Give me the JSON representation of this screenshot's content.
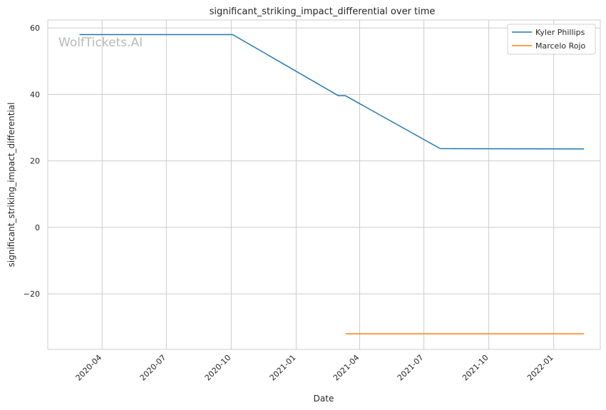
{
  "chart_data": {
    "type": "line",
    "title": "significant_striking_impact_differential over time",
    "xlabel": "Date",
    "ylabel": "significant_striking_impact_differential",
    "watermark": "WolfTickets.AI",
    "x_ticks": [
      "2020-04",
      "2020-07",
      "2020-10",
      "2021-01",
      "2021-04",
      "2021-07",
      "2021-10",
      "2022-01"
    ],
    "y_ticks": [
      "60",
      "40",
      "20",
      "0",
      "−20"
    ],
    "y_tick_values": [
      60,
      40,
      20,
      0,
      -20
    ],
    "ylim": [
      -36.7,
      62.4
    ],
    "xlim": [
      "2020-01-15",
      "2022-03-08"
    ],
    "grid": true,
    "legend_position": "top-right",
    "series": [
      {
        "name": "Kyler Phillips",
        "color": "#1f77b4",
        "points": [
          [
            "2020-02-29",
            58.0
          ],
          [
            "2020-10-03",
            58.0
          ],
          [
            "2021-03-02",
            39.6
          ],
          [
            "2021-03-12",
            39.6
          ],
          [
            "2021-07-24",
            23.7
          ],
          [
            "2022-02-13",
            23.6
          ]
        ]
      },
      {
        "name": "Marcelo Rojo",
        "color": "#ff7f0e",
        "points": [
          [
            "2021-03-12",
            -32.0
          ],
          [
            "2022-02-13",
            -32.0
          ]
        ]
      }
    ]
  }
}
